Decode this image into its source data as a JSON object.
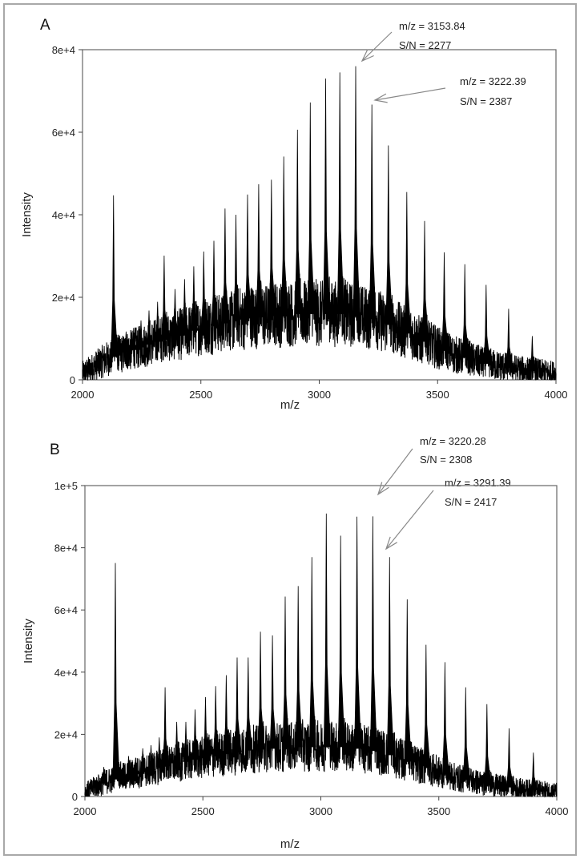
{
  "chart_data": [
    {
      "type": "line",
      "panel_label": "A",
      "xlabel": "m/z",
      "ylabel": "Intensity",
      "xlim": [
        2000,
        4000
      ],
      "ylim": [
        0,
        80000
      ],
      "x_ticks": [
        "2000",
        "2500",
        "3000",
        "3500",
        "4000"
      ],
      "y_ticks": [
        "0",
        "2e+4",
        "4e+4",
        "6e+4",
        "8e+4"
      ],
      "grid": false,
      "baseline_envelope": [
        [
          2000,
          1500
        ],
        [
          2100,
          5000
        ],
        [
          2300,
          9000
        ],
        [
          2500,
          12500
        ],
        [
          2700,
          15000
        ],
        [
          2900,
          16000
        ],
        [
          3100,
          16000
        ],
        [
          3250,
          14500
        ],
        [
          3400,
          10500
        ],
        [
          3550,
          6500
        ],
        [
          3700,
          4000
        ],
        [
          3850,
          2500
        ],
        [
          4000,
          1500
        ]
      ],
      "peaks": [
        {
          "mz": 2131,
          "intensity": 44700
        },
        {
          "mz": 2184,
          "intensity": 11700
        },
        {
          "mz": 2216,
          "intensity": 12600
        },
        {
          "mz": 2247,
          "intensity": 14400
        },
        {
          "mz": 2281,
          "intensity": 16800
        },
        {
          "mz": 2317,
          "intensity": 18900
        },
        {
          "mz": 2345,
          "intensity": 30100
        },
        {
          "mz": 2391,
          "intensity": 22000
        },
        {
          "mz": 2431,
          "intensity": 24400
        },
        {
          "mz": 2470,
          "intensity": 27500
        },
        {
          "mz": 2512,
          "intensity": 31100
        },
        {
          "mz": 2555,
          "intensity": 33700
        },
        {
          "mz": 2602,
          "intensity": 41500
        },
        {
          "mz": 2648,
          "intensity": 40000
        },
        {
          "mz": 2697,
          "intensity": 44900
        },
        {
          "mz": 2744,
          "intensity": 47400
        },
        {
          "mz": 2798,
          "intensity": 48500
        },
        {
          "mz": 2850,
          "intensity": 54100
        },
        {
          "mz": 2908,
          "intensity": 60600
        },
        {
          "mz": 2962,
          "intensity": 67200
        },
        {
          "mz": 3027,
          "intensity": 73000
        },
        {
          "mz": 3087,
          "intensity": 74500
        },
        {
          "mz": 3153.84,
          "intensity": 76000
        },
        {
          "mz": 3222.39,
          "intensity": 66700
        },
        {
          "mz": 3292,
          "intensity": 56800
        },
        {
          "mz": 3370,
          "intensity": 45500
        },
        {
          "mz": 3445,
          "intensity": 38500
        },
        {
          "mz": 3528,
          "intensity": 30900
        },
        {
          "mz": 3615,
          "intensity": 28000
        },
        {
          "mz": 3705,
          "intensity": 23000
        },
        {
          "mz": 3800,
          "intensity": 17200
        },
        {
          "mz": 3900,
          "intensity": 10600
        }
      ],
      "annotations": [
        {
          "line1": "m/z = 3153.84",
          "line2": "S/N = 2277",
          "mz": 3153.84,
          "intensity": 76000
        },
        {
          "line1": "m/z = 3222.39",
          "line2": "S/N = 2387",
          "mz": 3222.39,
          "intensity": 66700
        }
      ]
    },
    {
      "type": "line",
      "panel_label": "B",
      "xlabel": "m/z",
      "ylabel": "Intensity",
      "xlim": [
        2000,
        4000
      ],
      "ylim": [
        0,
        100000
      ],
      "x_ticks": [
        "2000",
        "2500",
        "3000",
        "3500",
        "4000"
      ],
      "y_ticks": [
        "0",
        "2e+4",
        "4e+4",
        "6e+4",
        "8e+4",
        "1e+5"
      ],
      "grid": false,
      "baseline_envelope": [
        [
          2000,
          1500
        ],
        [
          2100,
          5000
        ],
        [
          2300,
          9000
        ],
        [
          2500,
          12500
        ],
        [
          2700,
          15000
        ],
        [
          2900,
          16000
        ],
        [
          3100,
          16000
        ],
        [
          3250,
          14500
        ],
        [
          3400,
          10500
        ],
        [
          3550,
          6500
        ],
        [
          3700,
          4000
        ],
        [
          3850,
          2500
        ],
        [
          4000,
          1500
        ]
      ],
      "peaks": [
        {
          "mz": 2040,
          "intensity": 6000
        },
        {
          "mz": 2080,
          "intensity": 9500
        },
        {
          "mz": 2129,
          "intensity": 75100
        },
        {
          "mz": 2185,
          "intensity": 13000
        },
        {
          "mz": 2215,
          "intensity": 12500
        },
        {
          "mz": 2245,
          "intensity": 15500
        },
        {
          "mz": 2280,
          "intensity": 16500
        },
        {
          "mz": 2315,
          "intensity": 19000
        },
        {
          "mz": 2340,
          "intensity": 35100
        },
        {
          "mz": 2389,
          "intensity": 24000
        },
        {
          "mz": 2428,
          "intensity": 24000
        },
        {
          "mz": 2467,
          "intensity": 28000
        },
        {
          "mz": 2511,
          "intensity": 32000
        },
        {
          "mz": 2554,
          "intensity": 35500
        },
        {
          "mz": 2599,
          "intensity": 39000
        },
        {
          "mz": 2645,
          "intensity": 44700
        },
        {
          "mz": 2692,
          "intensity": 44700
        },
        {
          "mz": 2744,
          "intensity": 53000
        },
        {
          "mz": 2795,
          "intensity": 51800
        },
        {
          "mz": 2849,
          "intensity": 64300
        },
        {
          "mz": 2904,
          "intensity": 67700
        },
        {
          "mz": 2962,
          "intensity": 77000
        },
        {
          "mz": 3023,
          "intensity": 91000
        },
        {
          "mz": 3084,
          "intensity": 83900
        },
        {
          "mz": 3153,
          "intensity": 90000
        },
        {
          "mz": 3220.28,
          "intensity": 90100
        },
        {
          "mz": 3291.39,
          "intensity": 77000
        },
        {
          "mz": 3366,
          "intensity": 63400
        },
        {
          "mz": 3446,
          "intensity": 48800
        },
        {
          "mz": 3526,
          "intensity": 43200
        },
        {
          "mz": 3614,
          "intensity": 35100
        },
        {
          "mz": 3704,
          "intensity": 29700
        },
        {
          "mz": 3798,
          "intensity": 21900
        },
        {
          "mz": 3901,
          "intensity": 14100
        }
      ],
      "annotations": [
        {
          "line1": "m/z = 3220.28",
          "line2": "S/N = 2308",
          "mz": 3220.28,
          "intensity": 90100
        },
        {
          "line1": "m/z = 3291.39",
          "line2": "S/N = 2417",
          "mz": 3291.39,
          "intensity": 77000
        }
      ]
    }
  ],
  "colors": {
    "trace": "#000000",
    "arrow": "#888888",
    "frame": "#a8a8a8"
  }
}
